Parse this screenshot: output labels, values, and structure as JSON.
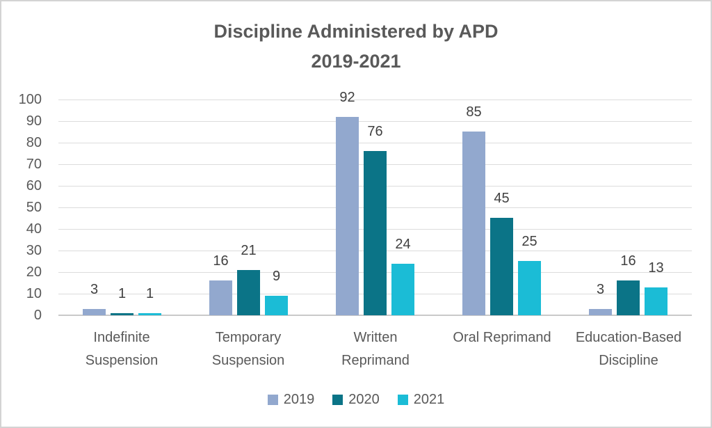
{
  "chart_data": {
    "type": "bar",
    "title": "Discipline Administered by APD",
    "subtitle": "2019-2021",
    "categories": [
      "Indefinite Suspension",
      "Temporary Suspension",
      "Written Reprimand",
      "Oral Reprimand",
      "Education-Based Discipline"
    ],
    "category_label_lines": [
      [
        "Indefinite",
        "Suspension"
      ],
      [
        "Temporary",
        "Suspension"
      ],
      [
        "Written",
        "Reprimand"
      ],
      [
        "Oral Reprimand"
      ],
      [
        "Education-Based",
        "Discipline"
      ]
    ],
    "series": [
      {
        "name": "2019",
        "color": "#92A8CE",
        "values": [
          3,
          16,
          92,
          85,
          3
        ]
      },
      {
        "name": "2020",
        "color": "#0B7487",
        "values": [
          1,
          21,
          76,
          45,
          16
        ]
      },
      {
        "name": "2021",
        "color": "#1BBCD6",
        "values": [
          1,
          9,
          24,
          25,
          13
        ]
      }
    ],
    "ylim": [
      0,
      100
    ],
    "yticks": [
      0,
      10,
      20,
      30,
      40,
      50,
      60,
      70,
      80,
      90,
      100
    ],
    "grid": true,
    "data_labels": "outside-end",
    "legend_position": "bottom",
    "colors": {
      "title_text": "#595959",
      "axis_text": "#595959",
      "data_label_text": "#404040",
      "gridline": "#DCDCDC",
      "axis_line": "#C9C9C9",
      "figure_border": "#D3D3D3",
      "background": "#FFFFFF"
    }
  }
}
